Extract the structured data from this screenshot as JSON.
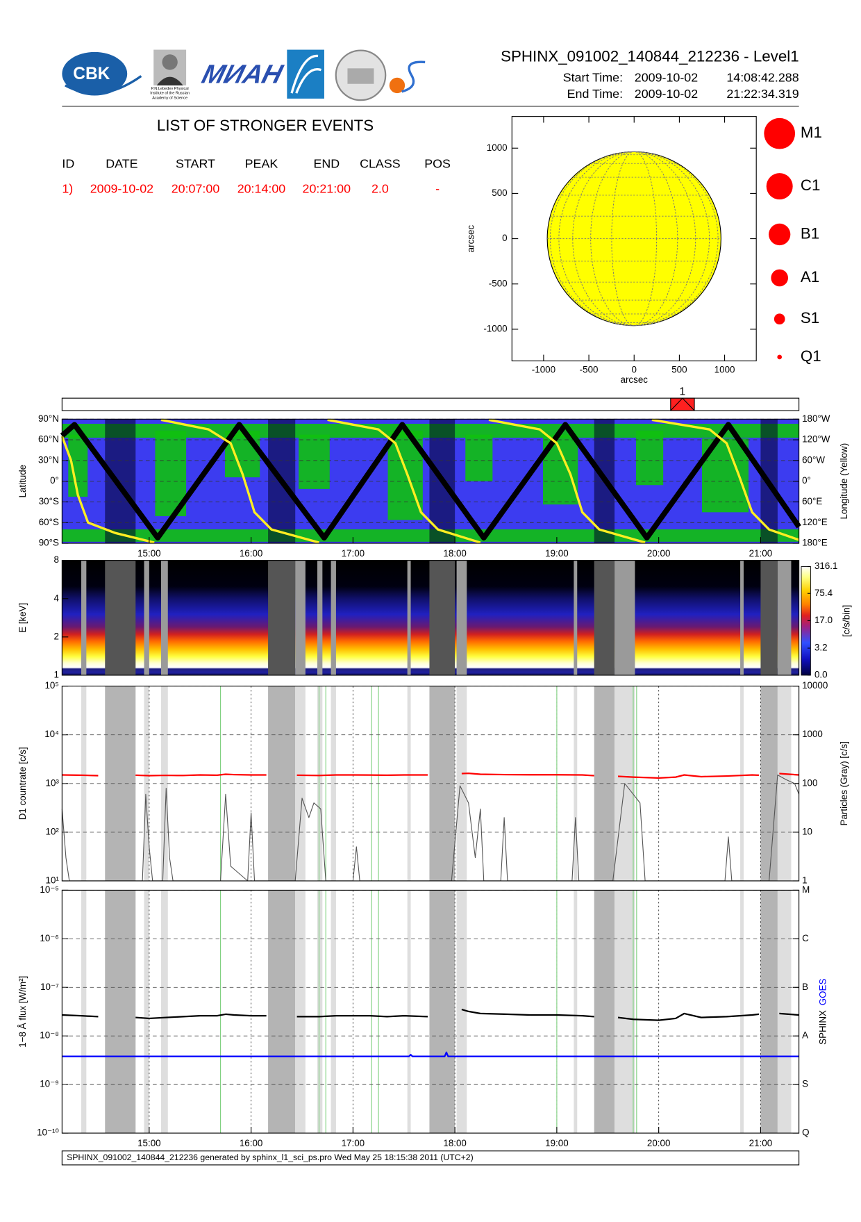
{
  "header": {
    "title": "SPHINX_091002_140844_212236 - Level1",
    "start_label": "Start Time:",
    "start_date": "2009-10-02",
    "start_time": "14:08:42.288",
    "end_label": "End Time:",
    "end_date": "2009-10-02",
    "end_time": "21:22:34.319"
  },
  "logos": {
    "cbk": "CBK",
    "lebedev": [
      "P.N.Lebedev Physical",
      "Institute of the Russian",
      "Academy of Science"
    ],
    "mian": "МИАН"
  },
  "events": {
    "title": "LIST OF STRONGER EVENTS",
    "columns": [
      "ID",
      "DATE",
      "START",
      "PEAK",
      "END",
      "CLASS",
      "POS"
    ],
    "rows": [
      [
        "1)",
        "2009-10-02",
        "20:07:00",
        "20:14:00",
        "20:21:00",
        "2.0",
        "-"
      ]
    ]
  },
  "event_bar": {
    "labels": [
      "1"
    ],
    "color": "#ff2020"
  },
  "observation": {
    "dark": [
      [
        "14:34",
        "14:52"
      ],
      [
        "16:10",
        "16:26"
      ],
      [
        "17:45",
        "18:00"
      ],
      [
        "19:22",
        "19:34"
      ],
      [
        "21:00",
        "21:10"
      ]
    ],
    "light": [
      [
        "14:20",
        "14:23"
      ],
      [
        "14:57",
        "15:00"
      ],
      [
        "15:07",
        "15:11"
      ],
      [
        "16:26",
        "16:32"
      ],
      [
        "16:39",
        "16:42"
      ],
      [
        "16:47",
        "16:50"
      ],
      [
        "17:32",
        "17:34"
      ],
      [
        "18:01",
        "18:07"
      ],
      [
        "19:10",
        "19:12"
      ],
      [
        "19:34",
        "19:46"
      ],
      [
        "20:48",
        "20:50"
      ],
      [
        "21:10",
        "21:18"
      ]
    ]
  },
  "footer": "SPHINX_091002_140844_212236 generated by sphinx_l1_sci_ps.pro Wed May 25 18:15:38 2011 (UTC+2)",
  "chart_data": [
    {
      "type": "disk",
      "xlim": [
        -1350,
        1350
      ],
      "ylim": [
        -1350,
        1350
      ],
      "xticks": [
        -1000,
        -500,
        0,
        500,
        1000
      ],
      "yticks": [
        -1000,
        -500,
        0,
        500,
        1000
      ],
      "xlabel": "arcsec",
      "ylabel": "arcsec",
      "disk_radius": 960,
      "disk_color": "#ffff00",
      "marker_color": "#ff0000",
      "class_legend": [
        "M1",
        "C1",
        "B1",
        "A1",
        "S1",
        "Q1"
      ]
    },
    {
      "type": "line",
      "xlim": [
        "14:08:42",
        "21:22:34"
      ],
      "xticks": [
        "15:00",
        "16:00",
        "17:00",
        "18:00",
        "19:00",
        "20:00",
        "21:00"
      ],
      "ylim": [
        -90,
        90
      ],
      "yticks": [
        {
          "value": 90,
          "label": "90°N"
        },
        {
          "value": 60,
          "label": "60°N"
        },
        {
          "value": 30,
          "label": "30°N"
        },
        {
          "value": 0,
          "label": "0°"
        },
        {
          "value": -30,
          "label": "30°S"
        },
        {
          "value": -60,
          "label": "60°S"
        },
        {
          "value": -90,
          "label": "90°S"
        }
      ],
      "y2lim": [
        180,
        -180
      ],
      "y2ticks": [
        {
          "value": -180,
          "label": "180°W"
        },
        {
          "value": -120,
          "label": "120°W"
        },
        {
          "value": -60,
          "label": "60°W"
        },
        {
          "value": 0,
          "label": "0°"
        },
        {
          "value": 60,
          "label": "60°E"
        },
        {
          "value": 120,
          "label": "120°E"
        },
        {
          "value": 180,
          "label": "180°E"
        }
      ],
      "ylabel": "Latitude",
      "y2label": "Longitude (Yellow)",
      "background": "#3c3cf0",
      "grid": true,
      "shading": "dark",
      "series": [
        {
          "color": "#000000",
          "x": [
            "14:08:42",
            "14:16",
            "15:05",
            "15:53",
            "16:43",
            "17:29",
            "18:17",
            "19:05",
            "19:53",
            "20:41",
            "21:22:34"
          ],
          "values": [
            66,
            82,
            -82,
            82,
            -82,
            82,
            -82,
            82,
            -82,
            82,
            -66
          ]
        },
        {
          "color": "#ffee22",
          "axis": "y2",
          "x": [
            "14:08:42",
            "14:14",
            "14:18",
            "14:24",
            "14:40",
            "15:03",
            "15:05",
            "15:07",
            "15:35",
            "15:48",
            "15:55",
            "16:02",
            "16:12",
            "16:40",
            "16:42",
            "16:45",
            "17:15",
            "17:25",
            "17:32",
            "17:40",
            "17:50",
            "18:15",
            "18:17",
            "18:20",
            "18:50",
            "19:00",
            "19:08",
            "19:15",
            "19:25",
            "19:52",
            "19:54",
            "19:56",
            "20:30",
            "20:40",
            "20:47",
            "20:55",
            "21:05",
            "21:22:34"
          ],
          "values": [
            -130,
            -60,
            40,
            120,
            150,
            178,
            null,
            -178,
            -150,
            -110,
            -20,
            90,
            140,
            178,
            null,
            -178,
            -150,
            -110,
            -20,
            90,
            140,
            178,
            null,
            -178,
            -150,
            -110,
            -20,
            90,
            140,
            178,
            null,
            -178,
            -150,
            -110,
            -20,
            90,
            140,
            170
          ]
        }
      ]
    },
    {
      "type": "heatmap",
      "xlim": [
        "14:08:42",
        "21:22:34"
      ],
      "ylim": [
        1,
        8
      ],
      "ylog": true,
      "yticks": [
        1,
        2,
        4,
        8
      ],
      "ylabel": "E [keV]",
      "shading": "all",
      "colorbar": {
        "lim": [
          0,
          316.1
        ],
        "ticks": [
          {
            "value": 0,
            "label": "0.0"
          },
          3.2,
          {
            "value": 17,
            "label": "17.0"
          },
          75.4,
          316.1
        ],
        "label": "[c/s/bin]"
      }
    },
    {
      "type": "line",
      "xlim": [
        "14:08:42",
        "21:22:34"
      ],
      "ylim": [
        10,
        100000
      ],
      "ylog": true,
      "yticks": [
        {
          "value": 10,
          "label": "10¹"
        },
        {
          "value": 100,
          "label": "10²"
        },
        {
          "value": 1000,
          "label": "10³"
        },
        {
          "value": 10000,
          "label": "10⁴"
        },
        {
          "value": 100000,
          "label": "10⁵"
        }
      ],
      "y2lim": [
        1,
        10000
      ],
      "y2log": true,
      "y2ticks": [
        1,
        10,
        100,
        1000,
        10000
      ],
      "ylabel": "D1 countrate [c/s]",
      "y2label": "Particles (Gray) [c/s]",
      "grid": true,
      "shading": "all",
      "markers": [
        "15:42",
        "16:40",
        "16:44",
        "17:11",
        "17:15",
        "19:00",
        "19:45",
        "19:47"
      ],
      "marker_color": "#7fd07f",
      "series": [
        {
          "color": "#ff0000",
          "x": [
            "14:08:42",
            "14:20",
            "14:30",
            "14:40",
            "14:52",
            "15:00",
            "15:10",
            "15:20",
            "15:30",
            "15:40",
            "15:45",
            "15:50",
            "16:00",
            "16:09",
            "16:18",
            "16:27",
            "16:40",
            "16:50",
            "17:00",
            "17:10",
            "17:20",
            "17:30",
            "17:44",
            "17:52",
            "18:04",
            "18:08",
            "18:15",
            "18:30",
            "18:45",
            "19:00",
            "19:15",
            "19:22",
            "19:28",
            "19:36",
            "19:45",
            "20:00",
            "20:10",
            "20:15",
            "20:25",
            "20:40",
            "20:55",
            "20:59",
            "21:05",
            "21:11",
            "21:22:34"
          ],
          "values": [
            1500,
            1480,
            1450,
            null,
            1480,
            1450,
            1470,
            1460,
            1500,
            1480,
            1550,
            1520,
            1500,
            1500,
            null,
            1480,
            1460,
            1500,
            1500,
            1490,
            1480,
            1500,
            1500,
            null,
            1600,
            1620,
            1550,
            1520,
            1510,
            1510,
            1500,
            1450,
            null,
            1400,
            1350,
            1300,
            1350,
            1500,
            1380,
            1420,
            1500,
            1480,
            null,
            1600,
            1500
          ]
        },
        {
          "color": "#555555",
          "axis": "y2",
          "x": [
            "14:08:42",
            "14:11",
            "14:13",
            "14:56",
            "14:58",
            "15:00",
            "15:02",
            "15:08",
            "15:10",
            "15:12",
            "15:14",
            "15:42",
            "15:45",
            "15:48",
            "15:58",
            "16:00",
            "16:02",
            "16:26",
            "16:30",
            "16:34",
            "16:37",
            "16:41",
            "16:44",
            "17:00",
            "17:02",
            "17:04",
            "17:58",
            "18:03",
            "18:08",
            "18:12",
            "18:15",
            "18:17",
            "18:27",
            "18:29",
            "18:31",
            "19:09",
            "19:11",
            "19:13",
            "19:33",
            "19:40",
            "19:45",
            "19:49",
            "19:52",
            "20:39",
            "20:41",
            "20:43",
            "21:05",
            "21:10",
            "21:15",
            "21:20",
            "21:22:34"
          ],
          "values": [
            30,
            3,
            1,
            1,
            60,
            5,
            1,
            1,
            80,
            3,
            1,
            1,
            60,
            2,
            1,
            25,
            1,
            1,
            50,
            20,
            40,
            30,
            1,
            1,
            5,
            1,
            1,
            90,
            40,
            3,
            30,
            1,
            1,
            20,
            1,
            1,
            20,
            1,
            1,
            100,
            60,
            40,
            1,
            1,
            8,
            1,
            1,
            150,
            120,
            100,
            60
          ]
        }
      ]
    },
    {
      "type": "line",
      "xlim": [
        "14:08:42",
        "21:22:34"
      ],
      "xticks": [
        "15:00",
        "16:00",
        "17:00",
        "18:00",
        "19:00",
        "20:00",
        "21:00"
      ],
      "ylim": [
        1e-10,
        1e-05
      ],
      "ylog": true,
      "yticks": [
        {
          "value": 1e-10,
          "label": "10⁻¹⁰"
        },
        {
          "value": 1e-09,
          "label": "10⁻⁹"
        },
        {
          "value": 1e-08,
          "label": "10⁻⁸"
        },
        {
          "value": 1e-07,
          "label": "10⁻⁷"
        },
        {
          "value": 1e-06,
          "label": "10⁻⁶"
        },
        {
          "value": 1e-05,
          "label": "10⁻⁵"
        }
      ],
      "y2lim": [
        1e-10,
        1e-05
      ],
      "y2log": true,
      "y2ticks": [
        {
          "value": 1e-10,
          "label": "Q"
        },
        {
          "value": 1e-09,
          "label": "S"
        },
        {
          "value": 1e-08,
          "label": "A"
        },
        {
          "value": 1e-07,
          "label": "B"
        },
        {
          "value": 1e-06,
          "label": "C"
        },
        {
          "value": 1e-05,
          "label": "M"
        }
      ],
      "ylabel": "1−8 Å flux [W/m²]",
      "grid": true,
      "shading": "all",
      "markers": [
        "15:42",
        "16:40",
        "16:44",
        "17:11",
        "17:15",
        "19:00",
        "19:45",
        "19:47"
      ],
      "marker_color": "#7fd07f",
      "series": [
        {
          "name": "SPHINX",
          "color": "#000000",
          "x": [
            "14:08:42",
            "14:20",
            "14:30",
            "14:40",
            "14:52",
            "15:00",
            "15:10",
            "15:20",
            "15:30",
            "15:40",
            "15:45",
            "15:50",
            "16:00",
            "16:09",
            "16:18",
            "16:27",
            "16:40",
            "16:50",
            "17:00",
            "17:10",
            "17:20",
            "17:30",
            "17:44",
            "17:52",
            "18:04",
            "18:08",
            "18:15",
            "18:30",
            "18:45",
            "19:00",
            "19:15",
            "19:22",
            "19:28",
            "19:36",
            "19:45",
            "20:00",
            "20:10",
            "20:15",
            "20:25",
            "20:40",
            "20:55",
            "20:59",
            "21:05",
            "21:11",
            "21:22:34"
          ],
          "values": [
            2.7e-08,
            2.6e-08,
            2.5e-08,
            null,
            2.4e-08,
            2.3e-08,
            2.4e-08,
            2.5e-08,
            2.6e-08,
            2.6e-08,
            2.8e-08,
            2.7e-08,
            2.6e-08,
            2.6e-08,
            null,
            2.5e-08,
            2.5e-08,
            2.6e-08,
            2.6e-08,
            2.6e-08,
            2.5e-08,
            2.6e-08,
            2.5e-08,
            null,
            3.5e-08,
            3.2e-08,
            2.9e-08,
            2.8e-08,
            2.7e-08,
            2.7e-08,
            2.6e-08,
            2.5e-08,
            null,
            2.4e-08,
            2.2e-08,
            2.1e-08,
            2.3e-08,
            2.9e-08,
            2.4e-08,
            2.5e-08,
            2.7e-08,
            2.8e-08,
            null,
            2.9e-08,
            2.7e-08
          ]
        },
        {
          "name": "GOES",
          "color": "#0000ff",
          "x": [
            "14:08:42",
            "17:33",
            "17:34",
            "17:35",
            "17:54",
            "17:55",
            "17:56",
            "21:22:34"
          ],
          "values": [
            3.8e-09,
            3.8e-09,
            4.1e-09,
            3.8e-09,
            3.8e-09,
            4.6e-09,
            3.8e-09,
            3.8e-09
          ]
        }
      ]
    }
  ]
}
